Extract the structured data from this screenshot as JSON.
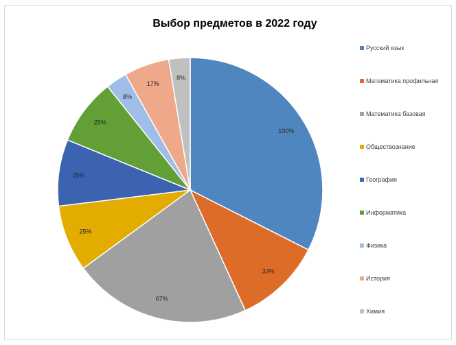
{
  "chart_data": {
    "type": "pie",
    "title": "Выбор предметов в 2022 году",
    "categories": [
      "Русский язык",
      "Математика профильная",
      "Математика базовая",
      "Обществознание",
      "География",
      "Информатика",
      "Физика",
      "История",
      "Химия"
    ],
    "values": [
      100,
      33,
      67,
      25,
      25,
      25,
      8,
      17,
      8
    ],
    "data_labels": [
      "100%",
      "33%",
      "67%",
      "25%",
      "25%",
      "25%",
      "8%",
      "17%",
      "8%"
    ],
    "colors": [
      "#4f86c0",
      "#dd6c28",
      "#a0a0a0",
      "#e2ac00",
      "#3c63b0",
      "#62a037",
      "#9fbde6",
      "#f0a88a",
      "#c0c0c0"
    ],
    "legend_position": "right",
    "start_angle": "12 o'clock",
    "direction": "clockwise"
  }
}
